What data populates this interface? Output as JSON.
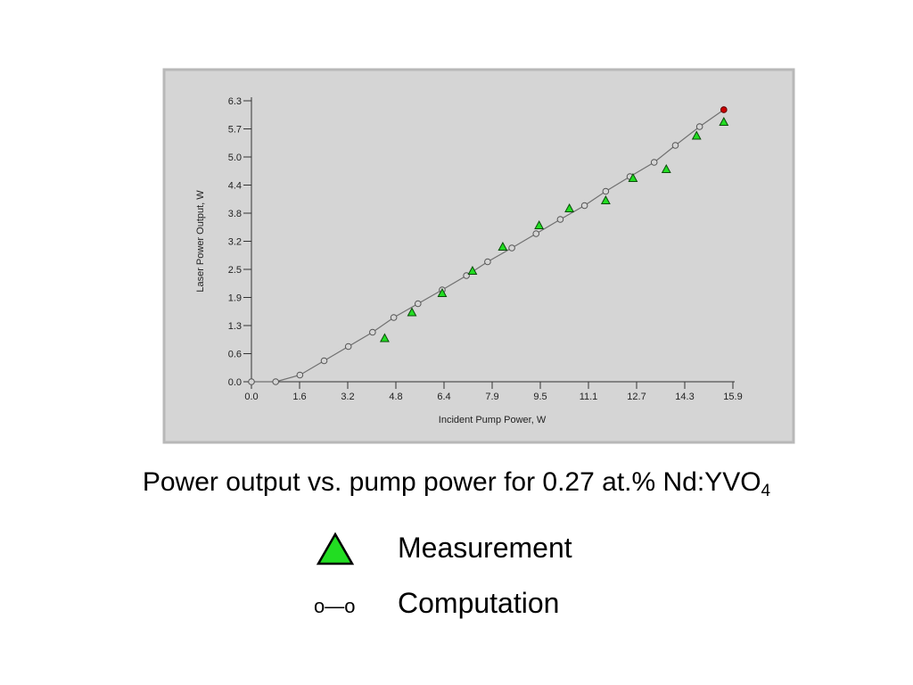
{
  "chart_data": {
    "type": "line",
    "xlabel": "Incident Pump Power, W",
    "ylabel": "Laser Power Output, W",
    "xlim": [
      0,
      15.9
    ],
    "ylim": [
      0,
      6.3
    ],
    "x_ticks": [
      "0.0",
      "1.6",
      "3.2",
      "4.8",
      "6.4",
      "7.9",
      "9.5",
      "11.1",
      "12.7",
      "14.3",
      "15.9"
    ],
    "y_ticks": [
      "0.0",
      "0.6",
      "1.3",
      "1.9",
      "2.5",
      "3.2",
      "3.8",
      "4.4",
      "5.0",
      "5.7",
      "6.3"
    ],
    "grid": false,
    "series": [
      {
        "name": "Computation",
        "style": "line-with-circles",
        "x": [
          0.0,
          0.8,
          1.6,
          2.4,
          3.2,
          4.0,
          4.7,
          5.5,
          6.3,
          7.1,
          7.8,
          8.6,
          9.4,
          10.2,
          11.0,
          11.7,
          12.5,
          13.3,
          14.0,
          14.8,
          15.6
        ],
        "y": [
          0.0,
          0.0,
          0.15,
          0.47,
          0.79,
          1.11,
          1.44,
          1.75,
          2.06,
          2.38,
          2.69,
          3.0,
          3.32,
          3.64,
          3.95,
          4.27,
          4.6,
          4.92,
          5.3,
          5.72,
          6.1
        ]
      },
      {
        "name": "Measurement",
        "style": "triangles",
        "x": [
          4.4,
          5.3,
          6.3,
          7.3,
          8.3,
          9.5,
          10.5,
          11.7,
          12.6,
          13.7,
          14.7,
          15.6
        ],
        "y": [
          0.97,
          1.55,
          1.98,
          2.48,
          3.02,
          3.5,
          3.88,
          4.06,
          4.56,
          4.76,
          5.51,
          5.82
        ]
      }
    ],
    "highlight_point": {
      "x": 15.6,
      "y": 6.1,
      "color": "#cc0000"
    }
  },
  "colors": {
    "panel_background": "#d5d5d5",
    "panel_border": "#b8b8b8",
    "computation_line": "#707070",
    "measurement_fill": "#22dd22",
    "measurement_stroke": "#0a4a0a",
    "highlight_fill": "#cc0000"
  },
  "caption": {
    "main": "Power output vs. pump power for 0.27 at.% Nd:YVO",
    "subscript": "4"
  },
  "legend": {
    "measurement_label": "Measurement",
    "computation_symbol": "o—o",
    "computation_label": "Computation",
    "measurement_icon": "green-triangle-icon"
  }
}
